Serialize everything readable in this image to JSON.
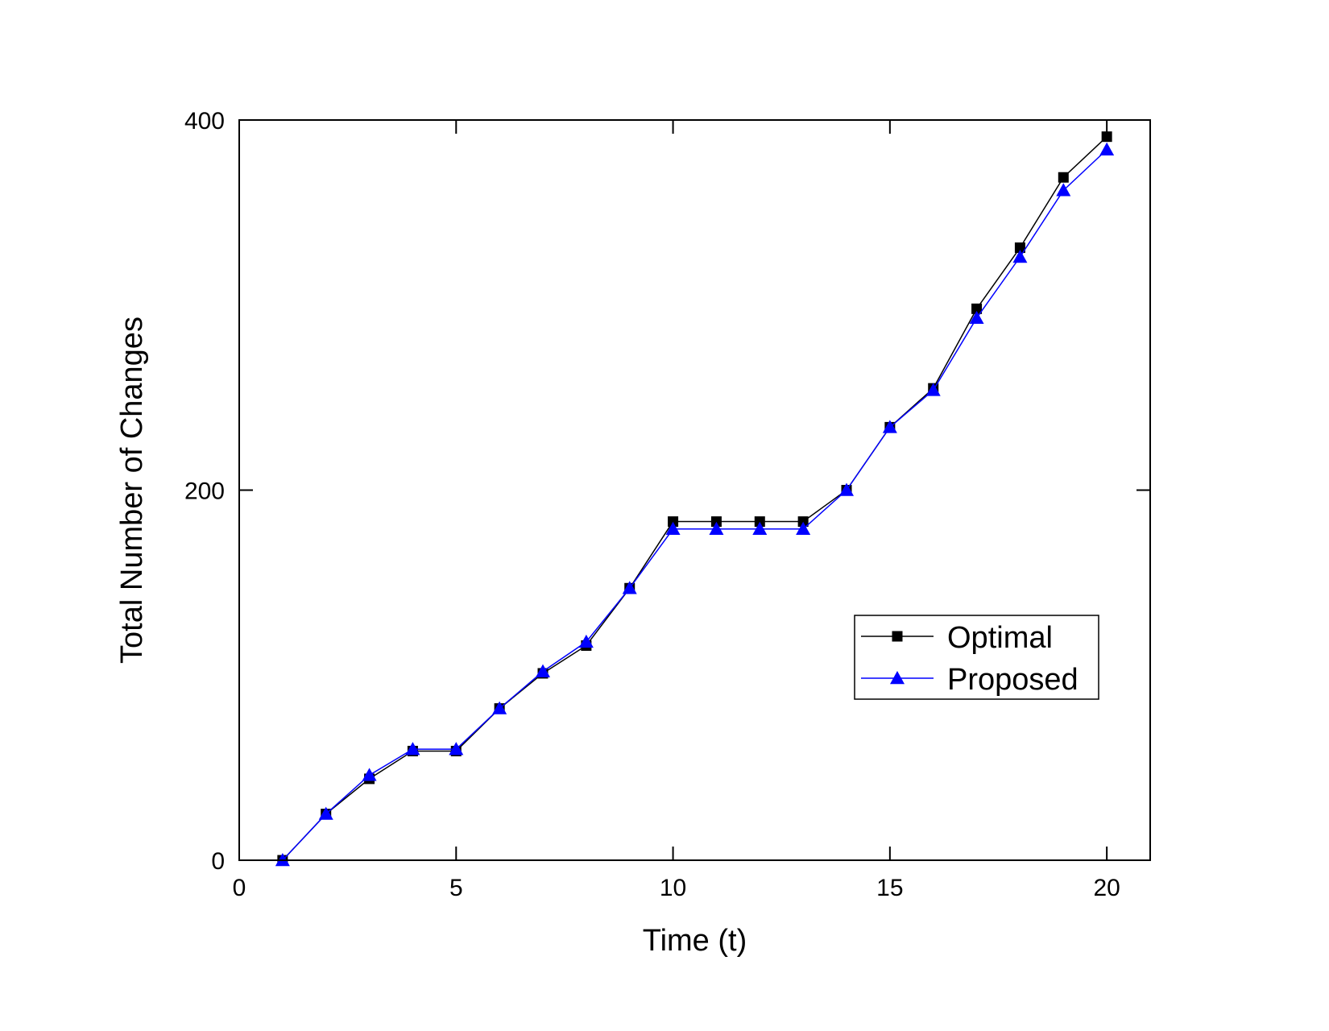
{
  "chart_data": {
    "type": "line",
    "title": "",
    "xlabel": "Time (t)",
    "ylabel": "Total Number of Changes",
    "xlim": [
      0,
      21
    ],
    "ylim": [
      0,
      400
    ],
    "xticks": [
      0,
      5,
      10,
      15,
      20
    ],
    "yticks": [
      0,
      200,
      400
    ],
    "grid": false,
    "legend_position": "right",
    "x": [
      1,
      2,
      3,
      4,
      5,
      6,
      7,
      8,
      9,
      10,
      11,
      12,
      13,
      14,
      15,
      16,
      17,
      18,
      19,
      20
    ],
    "series": [
      {
        "name": "Optimal",
        "color": "#000000",
        "marker": "square",
        "values": [
          0,
          25,
          44,
          59,
          59,
          82,
          101,
          116,
          147,
          183,
          183,
          183,
          183,
          200,
          234,
          255,
          298,
          331,
          369,
          391
        ]
      },
      {
        "name": "Proposed",
        "color": "#0000ff",
        "marker": "triangle",
        "values": [
          0,
          25,
          46,
          60,
          60,
          82,
          102,
          118,
          147,
          179,
          179,
          179,
          179,
          200,
          234,
          254,
          293,
          326,
          362,
          384
        ]
      }
    ]
  }
}
